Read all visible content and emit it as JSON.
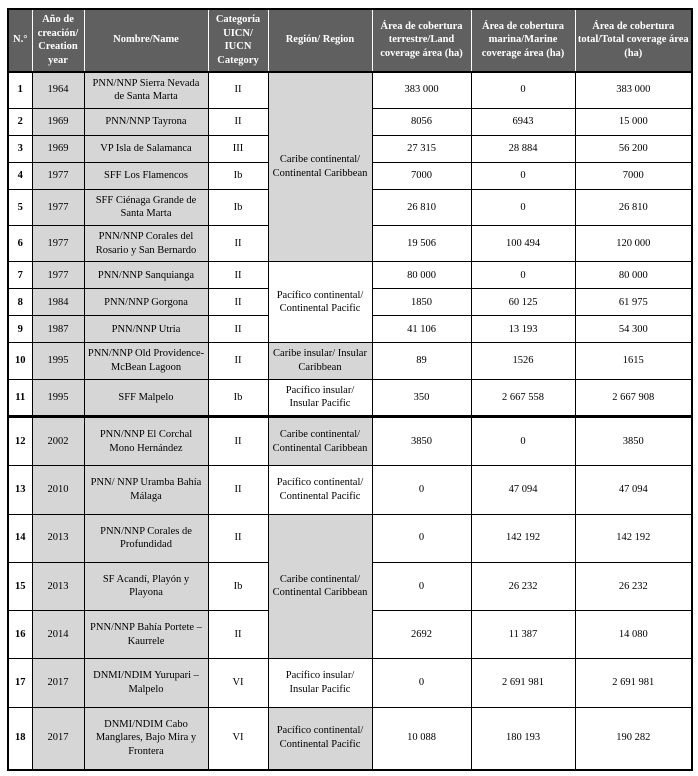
{
  "colors": {
    "header_bg": "#606060",
    "header_text": "#ffffff",
    "shaded_cell": "#d6d6d6",
    "border": "#000000"
  },
  "table": {
    "headers": [
      {
        "id": "num",
        "label": "N.°"
      },
      {
        "id": "year",
        "label": "Año de creación/ Creation year"
      },
      {
        "id": "name",
        "label": "Nombre/Name"
      },
      {
        "id": "category",
        "label": "Categoría UICN/ IUCN Category"
      },
      {
        "id": "region",
        "label": "Región/ Region"
      },
      {
        "id": "land",
        "label": "Área de cobertura terrestre/Land coverage área (ha)"
      },
      {
        "id": "marine",
        "label": "Área de cobertura marina/Marine coverage área (ha)"
      },
      {
        "id": "total",
        "label": "Área de cobertura total/Total coverage área (ha)"
      }
    ],
    "rows": [
      {
        "num": "1",
        "year": "1964",
        "name": "PNN/NNP Sierra Nevada de Santa Marta",
        "category": "II",
        "region": {
          "label": "Caribe continental/ Continental Caribbean",
          "rowspan": 6,
          "shaded": true
        },
        "land": "383 000",
        "marine": "0",
        "total": "383 000"
      },
      {
        "num": "2",
        "year": "1969",
        "name": "PNN/NNP Tayrona",
        "category": "II",
        "land": "8056",
        "marine": "6943",
        "total": "15 000"
      },
      {
        "num": "3",
        "year": "1969",
        "name": "VP Isla de Salamanca",
        "category": "III",
        "land": "27 315",
        "marine": "28 884",
        "total": "56 200"
      },
      {
        "num": "4",
        "year": "1977",
        "name": "SFF Los Flamencos",
        "category": "Ib",
        "land": "7000",
        "marine": "0",
        "total": "7000"
      },
      {
        "num": "5",
        "year": "1977",
        "name": "SFF Ciénaga Grande de Santa Marta",
        "category": "Ib",
        "land": "26 810",
        "marine": "0",
        "total": "26 810"
      },
      {
        "num": "6",
        "year": "1977",
        "name": "PNN/NNP Corales del Rosario y San Bernardo",
        "category": "II",
        "land": "19 506",
        "marine": "100 494",
        "total": "120 000"
      },
      {
        "num": "7",
        "year": "1977",
        "name": "PNN/NNP Sanquianga",
        "category": "II",
        "region": {
          "label": "Pacífico continental/ Continental Pacific",
          "rowspan": 3,
          "shaded": false
        },
        "land": "80 000",
        "marine": "0",
        "total": "80 000"
      },
      {
        "num": "8",
        "year": "1984",
        "name": "PNN/NNP Gorgona",
        "category": "II",
        "land": "1850",
        "marine": "60 125",
        "total": "61 975"
      },
      {
        "num": "9",
        "year": "1987",
        "name": "PNN/NNP Utria",
        "category": "II",
        "land": "41 106",
        "marine": "13 193",
        "total": "54 300"
      },
      {
        "num": "10",
        "year": "1995",
        "name": "PNN/NNP Old Providence-McBean Lagoon",
        "category": "II",
        "region": {
          "label": "Caribe insular/ Insular Caribbean",
          "rowspan": 1,
          "shaded": true
        },
        "land": "89",
        "marine": "1526",
        "total": "1615"
      },
      {
        "num": "11",
        "year": "1995",
        "name": "SFF Malpelo",
        "category": "Ib",
        "region": {
          "label": "Pacífico insular/ Insular Pacific",
          "rowspan": 1,
          "shaded": false
        },
        "land": "350",
        "marine": "2 667 558",
        "total": "2 667 908"
      },
      {
        "num": "12",
        "year": "2002",
        "name": "PNN/NNP El Corchal Mono Hernández",
        "category": "II",
        "region": {
          "label": "Caribe continental/ Continental Caribbean",
          "rowspan": 1,
          "shaded": true
        },
        "land": "3850",
        "marine": "0",
        "total": "3850",
        "thick_top": true
      },
      {
        "num": "13",
        "year": "2010",
        "name": "PNN/ NNP Uramba Bahía Málaga",
        "category": "II",
        "region": {
          "label": "Pacífico continental/ Continental Pacific",
          "rowspan": 1,
          "shaded": false
        },
        "land": "0",
        "marine": "47 094",
        "total": "47 094"
      },
      {
        "num": "14",
        "year": "2013",
        "name": "PNN/NNP Corales de Profundidad",
        "category": "II",
        "region": {
          "label": "Caribe continental/ Continental Caribbean",
          "rowspan": 3,
          "shaded": true
        },
        "land": "0",
        "marine": "142 192",
        "total": "142 192"
      },
      {
        "num": "15",
        "year": "2013",
        "name": "SF Acandí, Playón y Playona",
        "category": "Ib",
        "land": "0",
        "marine": "26 232",
        "total": "26 232"
      },
      {
        "num": "16",
        "year": "2014",
        "name": "PNN/NNP Bahía Portete – Kaurrele",
        "category": "II",
        "land": "2692",
        "marine": "11 387",
        "total": "14 080"
      },
      {
        "num": "17",
        "year": "2017",
        "name": "DNMI/NDIM Yurupari – Malpelo",
        "category": "VI",
        "region": {
          "label": "Pacífico insular/ Insular Pacific",
          "rowspan": 1,
          "shaded": false
        },
        "land": "0",
        "marine": "2 691 981",
        "total": "2 691 981"
      },
      {
        "num": "18",
        "year": "2017",
        "name": "DNMI/NDIM Cabo Manglares, Bajo Mira y Frontera",
        "category": "VI",
        "region": {
          "label": "Pacífico continental/ Continental Pacific",
          "rowspan": 1,
          "shaded": true
        },
        "land": "10 088",
        "marine": "180 193",
        "total": "190 282"
      }
    ]
  }
}
